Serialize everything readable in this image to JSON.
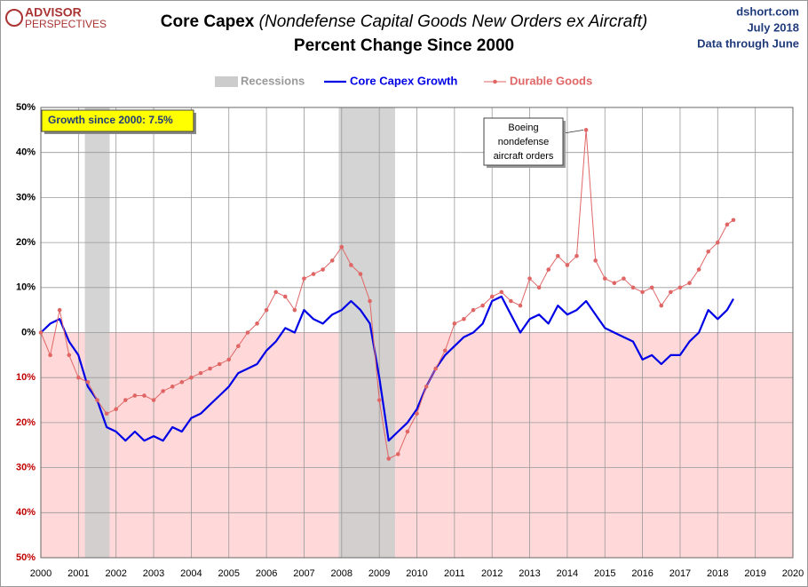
{
  "chart_data": {
    "type": "line",
    "logo": [
      "ADVISOR",
      "PERSPECTIVES"
    ],
    "title": "Core Capex",
    "title_note": "(Nondefense  Capital Goods New Orders ex Aircraft)",
    "subtitle": "Percent Change Since 2000",
    "source": [
      "dshort.com",
      "July 2018",
      "Data through June"
    ],
    "callout": "Growth since 2000:  7.5%",
    "annotations": [
      {
        "text": [
          "Boeing",
          "nondefense",
          "aircraft orders"
        ],
        "x": 2014.5,
        "y": 45
      }
    ],
    "recessions": {
      "name": "Recessions",
      "color": "#cccccc",
      "ranges": [
        [
          2001.17,
          2001.83
        ],
        [
          2007.92,
          2009.42
        ]
      ]
    },
    "x": [
      2000,
      2000.25,
      2000.5,
      2000.75,
      2001,
      2001.25,
      2001.5,
      2001.75,
      2002,
      2002.25,
      2002.5,
      2002.75,
      2003,
      2003.25,
      2003.5,
      2003.75,
      2004,
      2004.25,
      2004.5,
      2004.75,
      2005,
      2005.25,
      2005.5,
      2005.75,
      2006,
      2006.25,
      2006.5,
      2006.75,
      2007,
      2007.25,
      2007.5,
      2007.75,
      2008,
      2008.25,
      2008.5,
      2008.75,
      2009,
      2009.25,
      2009.5,
      2009.75,
      2010,
      2010.25,
      2010.5,
      2010.75,
      2011,
      2011.25,
      2011.5,
      2011.75,
      2012,
      2012.25,
      2012.5,
      2012.75,
      2013,
      2013.25,
      2013.5,
      2013.75,
      2014,
      2014.25,
      2014.5,
      2014.75,
      2015,
      2015.25,
      2015.5,
      2015.75,
      2016,
      2016.25,
      2016.5,
      2016.75,
      2017,
      2017.25,
      2017.5,
      2017.75,
      2018,
      2018.25,
      2018.417
    ],
    "series": [
      {
        "name": "Core Capex Growth",
        "color": "#0000e6",
        "markers": false,
        "values": [
          0,
          2,
          3,
          -2,
          -5,
          -12,
          -15,
          -21,
          -22,
          -24,
          -22,
          -24,
          -23,
          -24,
          -21,
          -22,
          -19,
          -18,
          -16,
          -14,
          -12,
          -9,
          -8,
          -7,
          -4,
          -2,
          1,
          0,
          5,
          3,
          2,
          4,
          5,
          7,
          5,
          2,
          -10,
          -24,
          -22,
          -20,
          -17,
          -12,
          -8,
          -5,
          -3,
          -1,
          0,
          2,
          7,
          8,
          4,
          0,
          3,
          4,
          2,
          6,
          4,
          5,
          7,
          4,
          1,
          0,
          -1,
          -2,
          -6,
          -5,
          -7,
          -5,
          -5,
          -2,
          0,
          5,
          3,
          5,
          7.5
        ]
      },
      {
        "name": "Durable Goods",
        "color": "#e06666",
        "markers": true,
        "values": [
          0,
          -5,
          5,
          -5,
          -10,
          -11,
          -15,
          -18,
          -17,
          -15,
          -14,
          -14,
          -15,
          -13,
          -12,
          -11,
          -10,
          -9,
          -8,
          -7,
          -6,
          -3,
          0,
          2,
          5,
          9,
          8,
          5,
          12,
          13,
          14,
          16,
          19,
          15,
          13,
          7,
          -15,
          -28,
          -27,
          -22,
          -18,
          -12,
          -8,
          -4,
          2,
          3,
          5,
          6,
          8,
          9,
          7,
          6,
          12,
          10,
          14,
          17,
          15,
          17,
          45,
          16,
          12,
          11,
          12,
          10,
          9,
          10,
          6,
          9,
          10,
          11,
          14,
          18,
          20,
          24,
          25
        ]
      }
    ],
    "xlim": [
      2000,
      2020
    ],
    "xticks": [
      2000,
      2001,
      2002,
      2003,
      2004,
      2005,
      2006,
      2007,
      2008,
      2009,
      2010,
      2011,
      2012,
      2013,
      2014,
      2015,
      2016,
      2017,
      2018,
      2019,
      2020
    ],
    "ylim": [
      -50,
      50
    ],
    "yticks": [
      {
        "value": 50,
        "label": "50%"
      },
      {
        "value": 40,
        "label": "40%"
      },
      {
        "value": 30,
        "label": "30%"
      },
      {
        "value": 20,
        "label": "20%"
      },
      {
        "value": 10,
        "label": "10%"
      },
      {
        "value": 0,
        "label": "0%"
      },
      {
        "value": -10,
        "label": "10%"
      },
      {
        "value": -20,
        "label": "20%"
      },
      {
        "value": -30,
        "label": "30%"
      },
      {
        "value": -40,
        "label": "40%"
      },
      {
        "value": -50,
        "label": "50%"
      }
    ],
    "grid": true,
    "negative_label_color": "#c00000",
    "negative_fill": "#ffd9d9"
  }
}
